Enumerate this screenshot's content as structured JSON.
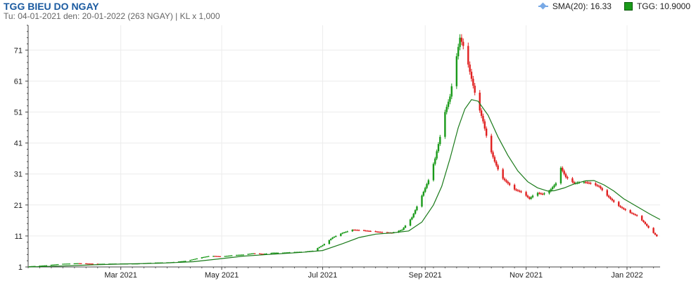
{
  "header": {
    "title": "TGG BIEU DO NGAY",
    "subtitle": "Tu: 04-01-2021 den: 20-01-2022 (263 NGAY) | KL x 1,000"
  },
  "legend": {
    "sma_label": "SMA(20): 16.33",
    "price_label": "TGG: 10.9000"
  },
  "colors": {
    "up": "#1a9a1a",
    "down": "#e02020",
    "sma_line": "#1a7a1a",
    "sma_legend": "#78a9e6",
    "title": "#1a5aa0"
  },
  "chart_data": {
    "type": "line",
    "ylim": [
      1,
      79
    ],
    "yticks": [
      1,
      11,
      21,
      31,
      41,
      51,
      61,
      71
    ],
    "xlim_days": [
      0,
      382
    ],
    "xticks": [
      {
        "label": "Mar 2021",
        "day": 56
      },
      {
        "label": "May 2021",
        "day": 117
      },
      {
        "label": "Jul 2021",
        "day": 178
      },
      {
        "label": "Sep 2021",
        "day": 240
      },
      {
        "label": "Nov 2021",
        "day": 301
      },
      {
        "label": "Jan 2022",
        "day": 362
      }
    ],
    "grid": true,
    "series": [
      {
        "name": "TGG",
        "kind": "candlestick",
        "points": [
          [
            0,
            1.2
          ],
          [
            10,
            1.5
          ],
          [
            20,
            2.0
          ],
          [
            30,
            2.2
          ],
          [
            42,
            2.0
          ],
          [
            56,
            2.1
          ],
          [
            66,
            2.1
          ],
          [
            76,
            2.4
          ],
          [
            86,
            2.5
          ],
          [
            96,
            3.0
          ],
          [
            104,
            4.0
          ],
          [
            110,
            4.6
          ],
          [
            117,
            4.4
          ],
          [
            124,
            4.8
          ],
          [
            130,
            5.0
          ],
          [
            136,
            5.4
          ],
          [
            142,
            5.2
          ],
          [
            148,
            5.6
          ],
          [
            154,
            5.6
          ],
          [
            160,
            5.8
          ],
          [
            166,
            5.9
          ],
          [
            172,
            6.2
          ],
          [
            178,
            8.0
          ],
          [
            184,
            10.5
          ],
          [
            190,
            12.0
          ],
          [
            196,
            13.0
          ],
          [
            202,
            12.8
          ],
          [
            208,
            12.5
          ],
          [
            214,
            12.2
          ],
          [
            220,
            12.0
          ],
          [
            226,
            13.0
          ],
          [
            232,
            17.0
          ],
          [
            238,
            24.0
          ],
          [
            242,
            29.0
          ],
          [
            246,
            36.0
          ],
          [
            249,
            43.0
          ],
          [
            252,
            51.0
          ],
          [
            255,
            56.0
          ],
          [
            258,
            66.0
          ],
          [
            261,
            75.0
          ],
          [
            264,
            71.0
          ],
          [
            267,
            64.0
          ],
          [
            271,
            55.0
          ],
          [
            275,
            48.0
          ],
          [
            278,
            41.0
          ],
          [
            282,
            35.0
          ],
          [
            286,
            30.0
          ],
          [
            290,
            28.0
          ],
          [
            294,
            26.0
          ],
          [
            299,
            25.0
          ],
          [
            303,
            23.0
          ],
          [
            307,
            25.0
          ],
          [
            311,
            24.5
          ],
          [
            315,
            25.5
          ],
          [
            319,
            28.0
          ],
          [
            322,
            33.0
          ],
          [
            325,
            30.0
          ],
          [
            330,
            28.0
          ],
          [
            335,
            28.5
          ],
          [
            340,
            28.0
          ],
          [
            345,
            27.0
          ],
          [
            350,
            24.0
          ],
          [
            356,
            21.0
          ],
          [
            362,
            19.0
          ],
          [
            368,
            17.5
          ],
          [
            372,
            15.5
          ],
          [
            376,
            13.0
          ],
          [
            380,
            10.9
          ]
        ]
      },
      {
        "name": "SMA(20)",
        "kind": "line",
        "points": [
          [
            0,
            1.0
          ],
          [
            20,
            1.3
          ],
          [
            40,
            1.7
          ],
          [
            60,
            2.0
          ],
          [
            80,
            2.2
          ],
          [
            100,
            2.7
          ],
          [
            117,
            3.7
          ],
          [
            130,
            4.5
          ],
          [
            150,
            5.2
          ],
          [
            165,
            5.7
          ],
          [
            178,
            6.3
          ],
          [
            190,
            8.5
          ],
          [
            200,
            10.5
          ],
          [
            210,
            11.6
          ],
          [
            220,
            12.0
          ],
          [
            230,
            12.6
          ],
          [
            238,
            15.5
          ],
          [
            245,
            21.0
          ],
          [
            250,
            27.0
          ],
          [
            255,
            36.0
          ],
          [
            260,
            46.0
          ],
          [
            264,
            52.0
          ],
          [
            268,
            55.0
          ],
          [
            272,
            54.5
          ],
          [
            278,
            50.0
          ],
          [
            284,
            43.0
          ],
          [
            290,
            37.0
          ],
          [
            296,
            32.0
          ],
          [
            302,
            28.5
          ],
          [
            308,
            26.5
          ],
          [
            314,
            25.5
          ],
          [
            318,
            25.6
          ],
          [
            324,
            26.5
          ],
          [
            330,
            27.8
          ],
          [
            337,
            28.8
          ],
          [
            342,
            28.9
          ],
          [
            348,
            27.5
          ],
          [
            354,
            25.5
          ],
          [
            360,
            23.0
          ],
          [
            368,
            20.5
          ],
          [
            376,
            18.0
          ],
          [
            382,
            16.3
          ]
        ]
      }
    ]
  }
}
